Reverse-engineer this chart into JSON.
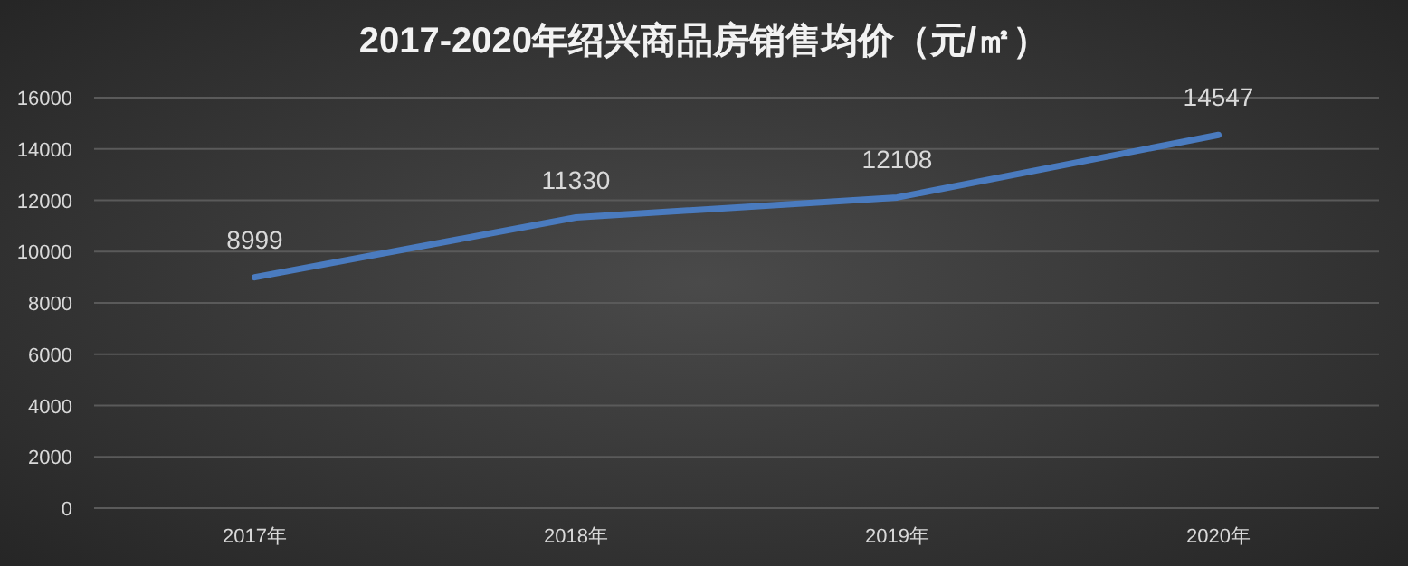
{
  "chart_data": {
    "type": "line",
    "title": "2017-2020年绍兴商品房销售均价（元/㎡）",
    "categories": [
      "2017年",
      "2018年",
      "2019年",
      "2020年"
    ],
    "values": [
      8999,
      11330,
      12108,
      14547
    ],
    "color": "#4a7bbf",
    "ylim": [
      0,
      16000
    ],
    "yticks": [
      0,
      2000,
      4000,
      6000,
      8000,
      10000,
      12000,
      14000,
      16000
    ],
    "grid": "y",
    "data_labels": true
  }
}
